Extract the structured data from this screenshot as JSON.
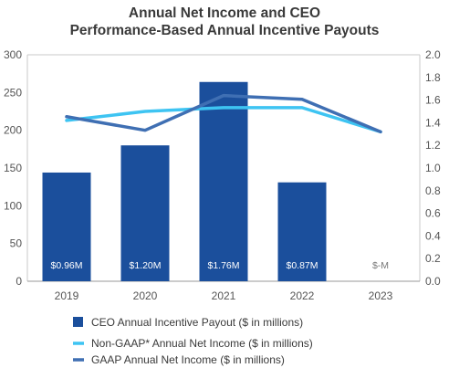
{
  "chart_data": {
    "type": "bar",
    "title_lines": [
      "Annual Net Income and CEO",
      "Performance-Based Annual Incentive Payouts"
    ],
    "categories": [
      "2019",
      "2020",
      "2021",
      "2022",
      "2023"
    ],
    "ylim_left": [
      0,
      300
    ],
    "yticks_left": [
      "0",
      "50",
      "100",
      "150",
      "200",
      "250",
      "300"
    ],
    "ylim_right": [
      0,
      2.0
    ],
    "yticks_right": [
      "0.0",
      "0.2",
      "0.4",
      "0.6",
      "0.8",
      "1.0",
      "1.2",
      "1.4",
      "1.6",
      "1.8",
      "2.0"
    ],
    "grid": false,
    "series": [
      {
        "name": "CEO Annual Incentive Payout ($ in millions)",
        "kind": "bar",
        "axis": "left",
        "color": "#1b4f9c",
        "values": [
          144,
          180,
          264,
          131,
          0
        ],
        "labels": [
          "$0.96M",
          "$1.20M",
          "$1.76M",
          "$0.87M",
          "$-M"
        ]
      },
      {
        "name": "Non-GAAP* Annual Net Income ($ in millions)",
        "kind": "line",
        "axis": "left",
        "color": "#3ec4f2",
        "values": [
          213,
          225,
          230,
          230,
          198
        ]
      },
      {
        "name": "GAAP Annual Net Income ($ in millions)",
        "kind": "line",
        "axis": "left",
        "color": "#3f6fb3",
        "values": [
          218,
          200,
          246,
          241,
          198
        ]
      }
    ],
    "legend_position": "bottom"
  }
}
